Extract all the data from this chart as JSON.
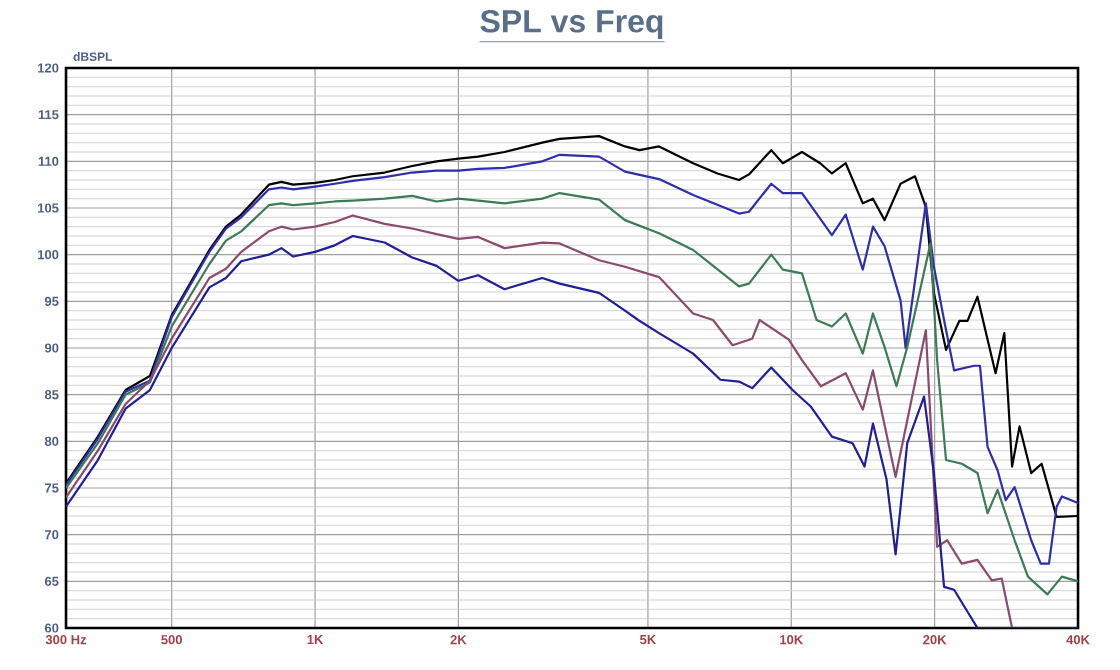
{
  "chart_data": {
    "type": "line",
    "title": "SPL vs Freq",
    "ylabel": "dBSPL",
    "log": "x",
    "grid": true,
    "marker": "none",
    "line_style": "solid",
    "xlim": [
      300,
      40000
    ],
    "ylim": [
      60,
      120
    ],
    "xticks": [
      {
        "value": 300,
        "label": "300  Hz"
      },
      {
        "value": 500,
        "label": "500"
      },
      {
        "value": 1000,
        "label": "1K"
      },
      {
        "value": 2000,
        "label": "2K"
      },
      {
        "value": 5000,
        "label": "5K"
      },
      {
        "value": 10000,
        "label": "10K"
      },
      {
        "value": 20000,
        "label": "20K"
      },
      {
        "value": 40000,
        "label": "40K"
      }
    ],
    "yticks": [
      60,
      65,
      70,
      75,
      80,
      85,
      90,
      95,
      100,
      105,
      110,
      115,
      120
    ],
    "series": [
      {
        "color": "#000000",
        "x": [
          300,
          350,
          400,
          450,
          500,
          600,
          650,
          700,
          800,
          850,
          900,
          1000,
          1100,
          1200,
          1400,
          1600,
          1800,
          2000,
          2200,
          2500,
          3000,
          3262,
          3949,
          4475,
          4800,
          5276,
          6222,
          7000,
          7768,
          8150,
          9077,
          9600,
          10530,
          11500,
          12170,
          13010,
          14130,
          14840,
          15700,
          16960,
          18190,
          19170,
          19930,
          21130,
          22530,
          23440,
          24600,
          25830,
          26850,
          28010,
          29080,
          30150,
          31900,
          33550,
          36070,
          40000
        ],
        "values": [
          75.5,
          80.5,
          85.5,
          87,
          93.5,
          100.5,
          103,
          104.3,
          107.5,
          107.8,
          107.5,
          107.7,
          108,
          108.4,
          108.8,
          109.5,
          110,
          110.3,
          110.5,
          111,
          112,
          112.4,
          112.7,
          111.6,
          111.2,
          111.6,
          109.8,
          108.7,
          108,
          108.6,
          111.2,
          109.8,
          111,
          109.8,
          108.7,
          109.8,
          105.5,
          106,
          103.7,
          107.6,
          108.4,
          105.1,
          95.9,
          89.8,
          92.9,
          92.9,
          95.5,
          90.9,
          87.3,
          91.6,
          77.3,
          81.6,
          76.6,
          77.6,
          71.9,
          72
        ]
      },
      {
        "color": "#2e2eb0",
        "x": [
          300,
          350,
          400,
          450,
          500,
          600,
          650,
          700,
          800,
          850,
          900,
          1000,
          1100,
          1200,
          1400,
          1600,
          1800,
          2000,
          2200,
          2500,
          3000,
          3262,
          3949,
          4475,
          5276,
          6222,
          7768,
          8150,
          9077,
          9600,
          10530,
          12170,
          13010,
          14130,
          14840,
          15700,
          16960,
          17380,
          19170,
          19930,
          20930,
          21970,
          24200,
          24900,
          25830,
          27110,
          28200,
          29440,
          31900,
          33400,
          34760,
          36070,
          37000,
          40000
        ],
        "values": [
          75.3,
          80.3,
          85.3,
          86.5,
          93.3,
          100.3,
          102.8,
          104,
          107,
          107.2,
          107,
          107.3,
          107.6,
          107.9,
          108.3,
          108.8,
          109,
          109,
          109.2,
          109.3,
          110,
          110.7,
          110.5,
          108.9,
          108.1,
          106.4,
          104.4,
          104.6,
          107.6,
          106.6,
          106.6,
          102.1,
          104.3,
          98.4,
          103,
          100.9,
          95.1,
          90,
          105.5,
          98.7,
          93,
          87.6,
          88.1,
          88.1,
          79.4,
          76.9,
          73.7,
          75.1,
          69.4,
          66.9,
          66.9,
          73,
          74.1,
          73.4
        ]
      },
      {
        "color": "#3a7d55",
        "x": [
          300,
          350,
          400,
          450,
          500,
          600,
          650,
          700,
          800,
          850,
          900,
          1000,
          1100,
          1200,
          1400,
          1600,
          1800,
          2000,
          2200,
          2500,
          3000,
          3262,
          3949,
          4475,
          5276,
          6222,
          7768,
          8150,
          9077,
          9600,
          10530,
          11300,
          12170,
          13010,
          14130,
          14840,
          15700,
          16630,
          17520,
          19600,
          20240,
          21130,
          22800,
          24600,
          25830,
          27110,
          29440,
          31400,
          34500,
          37000,
          40000
        ],
        "values": [
          75,
          79.8,
          85,
          86.3,
          92.3,
          99,
          101.5,
          102.5,
          105.3,
          105.5,
          105.3,
          105.5,
          105.7,
          105.8,
          106,
          106.3,
          105.7,
          106,
          105.8,
          105.5,
          106,
          106.6,
          105.9,
          103.7,
          102.3,
          100.5,
          96.6,
          96.9,
          100,
          98.4,
          98,
          93,
          92.3,
          93.7,
          89.4,
          93.7,
          90.1,
          85.9,
          90.1,
          101.2,
          88.7,
          78,
          77.6,
          76.6,
          72.3,
          74.8,
          69.4,
          65.5,
          63.6,
          65.5,
          65
        ]
      },
      {
        "color": "#8b4a6e",
        "x": [
          300,
          350,
          400,
          450,
          500,
          600,
          650,
          700,
          800,
          850,
          900,
          1000,
          1100,
          1200,
          1400,
          1600,
          1800,
          2000,
          2200,
          2500,
          3000,
          3262,
          3949,
          4475,
          5276,
          6222,
          6850,
          7530,
          8280,
          8580,
          9880,
          10530,
          11540,
          13010,
          14130,
          14840,
          16560,
          19170,
          20240,
          21250,
          22800,
          24600,
          26360,
          27660,
          29080,
          40000
        ],
        "values": [
          74,
          79,
          84,
          86.5,
          91,
          97.5,
          98.5,
          100.3,
          102.5,
          103,
          102.7,
          103,
          103.5,
          104.2,
          103.3,
          102.8,
          102.2,
          101.7,
          101.9,
          100.7,
          101.3,
          101.2,
          99.4,
          98.7,
          97.6,
          93.7,
          93,
          90.3,
          91,
          93,
          90.9,
          88.7,
          85.9,
          87.3,
          83.4,
          87.6,
          76.2,
          91.9,
          68.7,
          69.4,
          66.9,
          67.3,
          65.1,
          65.3,
          60,
          60
        ]
      },
      {
        "color": "#1f1f9a",
        "x": [
          300,
          350,
          400,
          450,
          500,
          600,
          650,
          700,
          800,
          850,
          900,
          1000,
          1100,
          1200,
          1400,
          1600,
          1800,
          2000,
          2200,
          2500,
          3000,
          3262,
          3949,
          4475,
          4770,
          5276,
          6222,
          7100,
          7768,
          8280,
          9077,
          10060,
          11000,
          12170,
          13450,
          14250,
          14840,
          15850,
          16560,
          17520,
          19000,
          19930,
          20930,
          21970,
          24600,
          40000
        ],
        "values": [
          73,
          78,
          83.5,
          85.5,
          90,
          96.5,
          97.5,
          99.3,
          100,
          100.7,
          99.8,
          100.3,
          101,
          102,
          101.3,
          99.7,
          98.8,
          97.2,
          97.8,
          96.3,
          97.5,
          96.9,
          95.9,
          94,
          93,
          91.6,
          89.4,
          86.6,
          86.4,
          85.7,
          87.9,
          85.5,
          83.7,
          80.5,
          79.8,
          77.3,
          81.9,
          75.9,
          67.9,
          79.8,
          84.8,
          76.6,
          64.4,
          64.1,
          60,
          60
        ]
      }
    ]
  }
}
